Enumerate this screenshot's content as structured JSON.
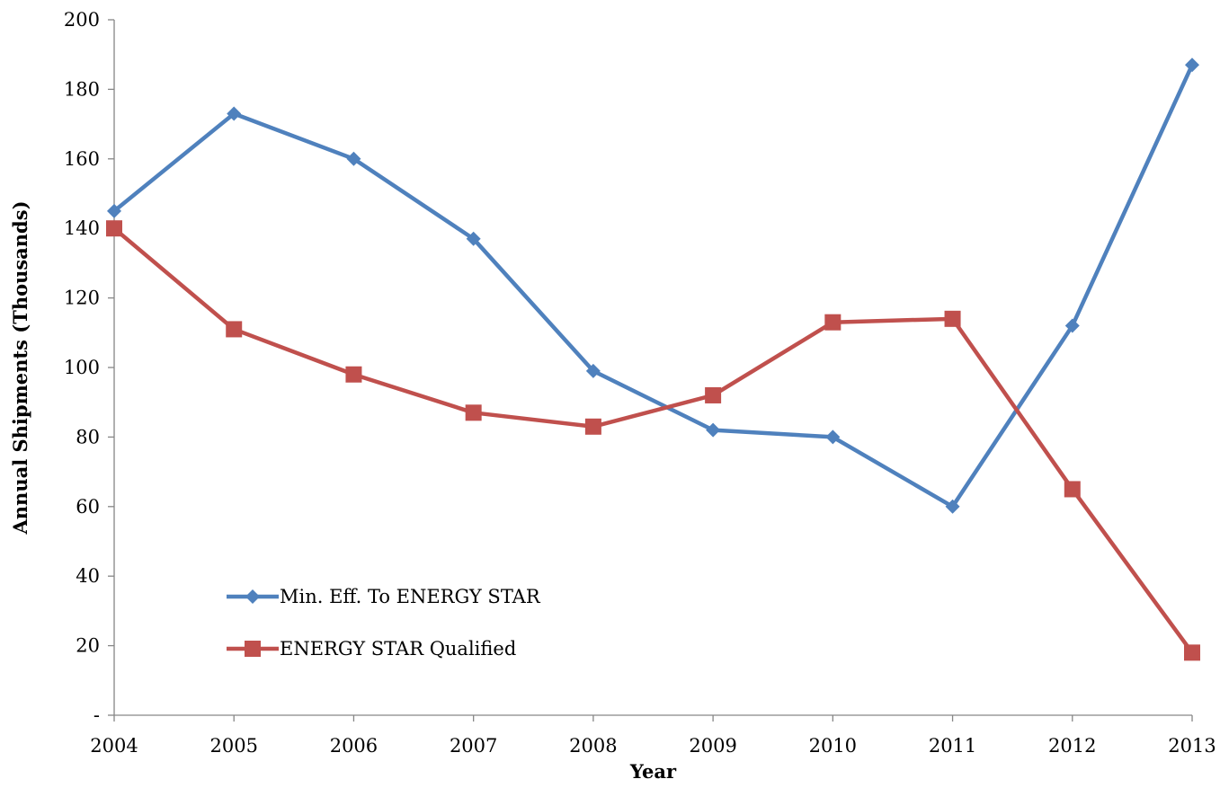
{
  "chart_data": {
    "type": "line",
    "title": "",
    "xlabel": "Year",
    "ylabel": "Annual Shipments (Thousands)",
    "x": [
      "2004",
      "2005",
      "2006",
      "2007",
      "2008",
      "2009",
      "2010",
      "2011",
      "2012",
      "2013"
    ],
    "ylim": [
      0,
      200
    ],
    "yticks": [
      0,
      20,
      40,
      60,
      80,
      100,
      120,
      140,
      160,
      180,
      200
    ],
    "ytick_labels": [
      "-",
      "20",
      "40",
      "60",
      "80",
      "100",
      "120",
      "140",
      "160",
      "180",
      "200"
    ],
    "grid": false,
    "legend_position": "lower-left",
    "series": [
      {
        "name": "Min. Eff. To ENERGY STAR",
        "color": "#4F81BD",
        "marker": "diamond",
        "values": [
          145,
          173,
          160,
          137,
          99,
          82,
          80,
          60,
          112,
          187
        ]
      },
      {
        "name": "ENERGY STAR Qualified",
        "color": "#C0504D",
        "marker": "square",
        "values": [
          140,
          111,
          98,
          87,
          83,
          92,
          113,
          114,
          65,
          18
        ]
      }
    ]
  }
}
